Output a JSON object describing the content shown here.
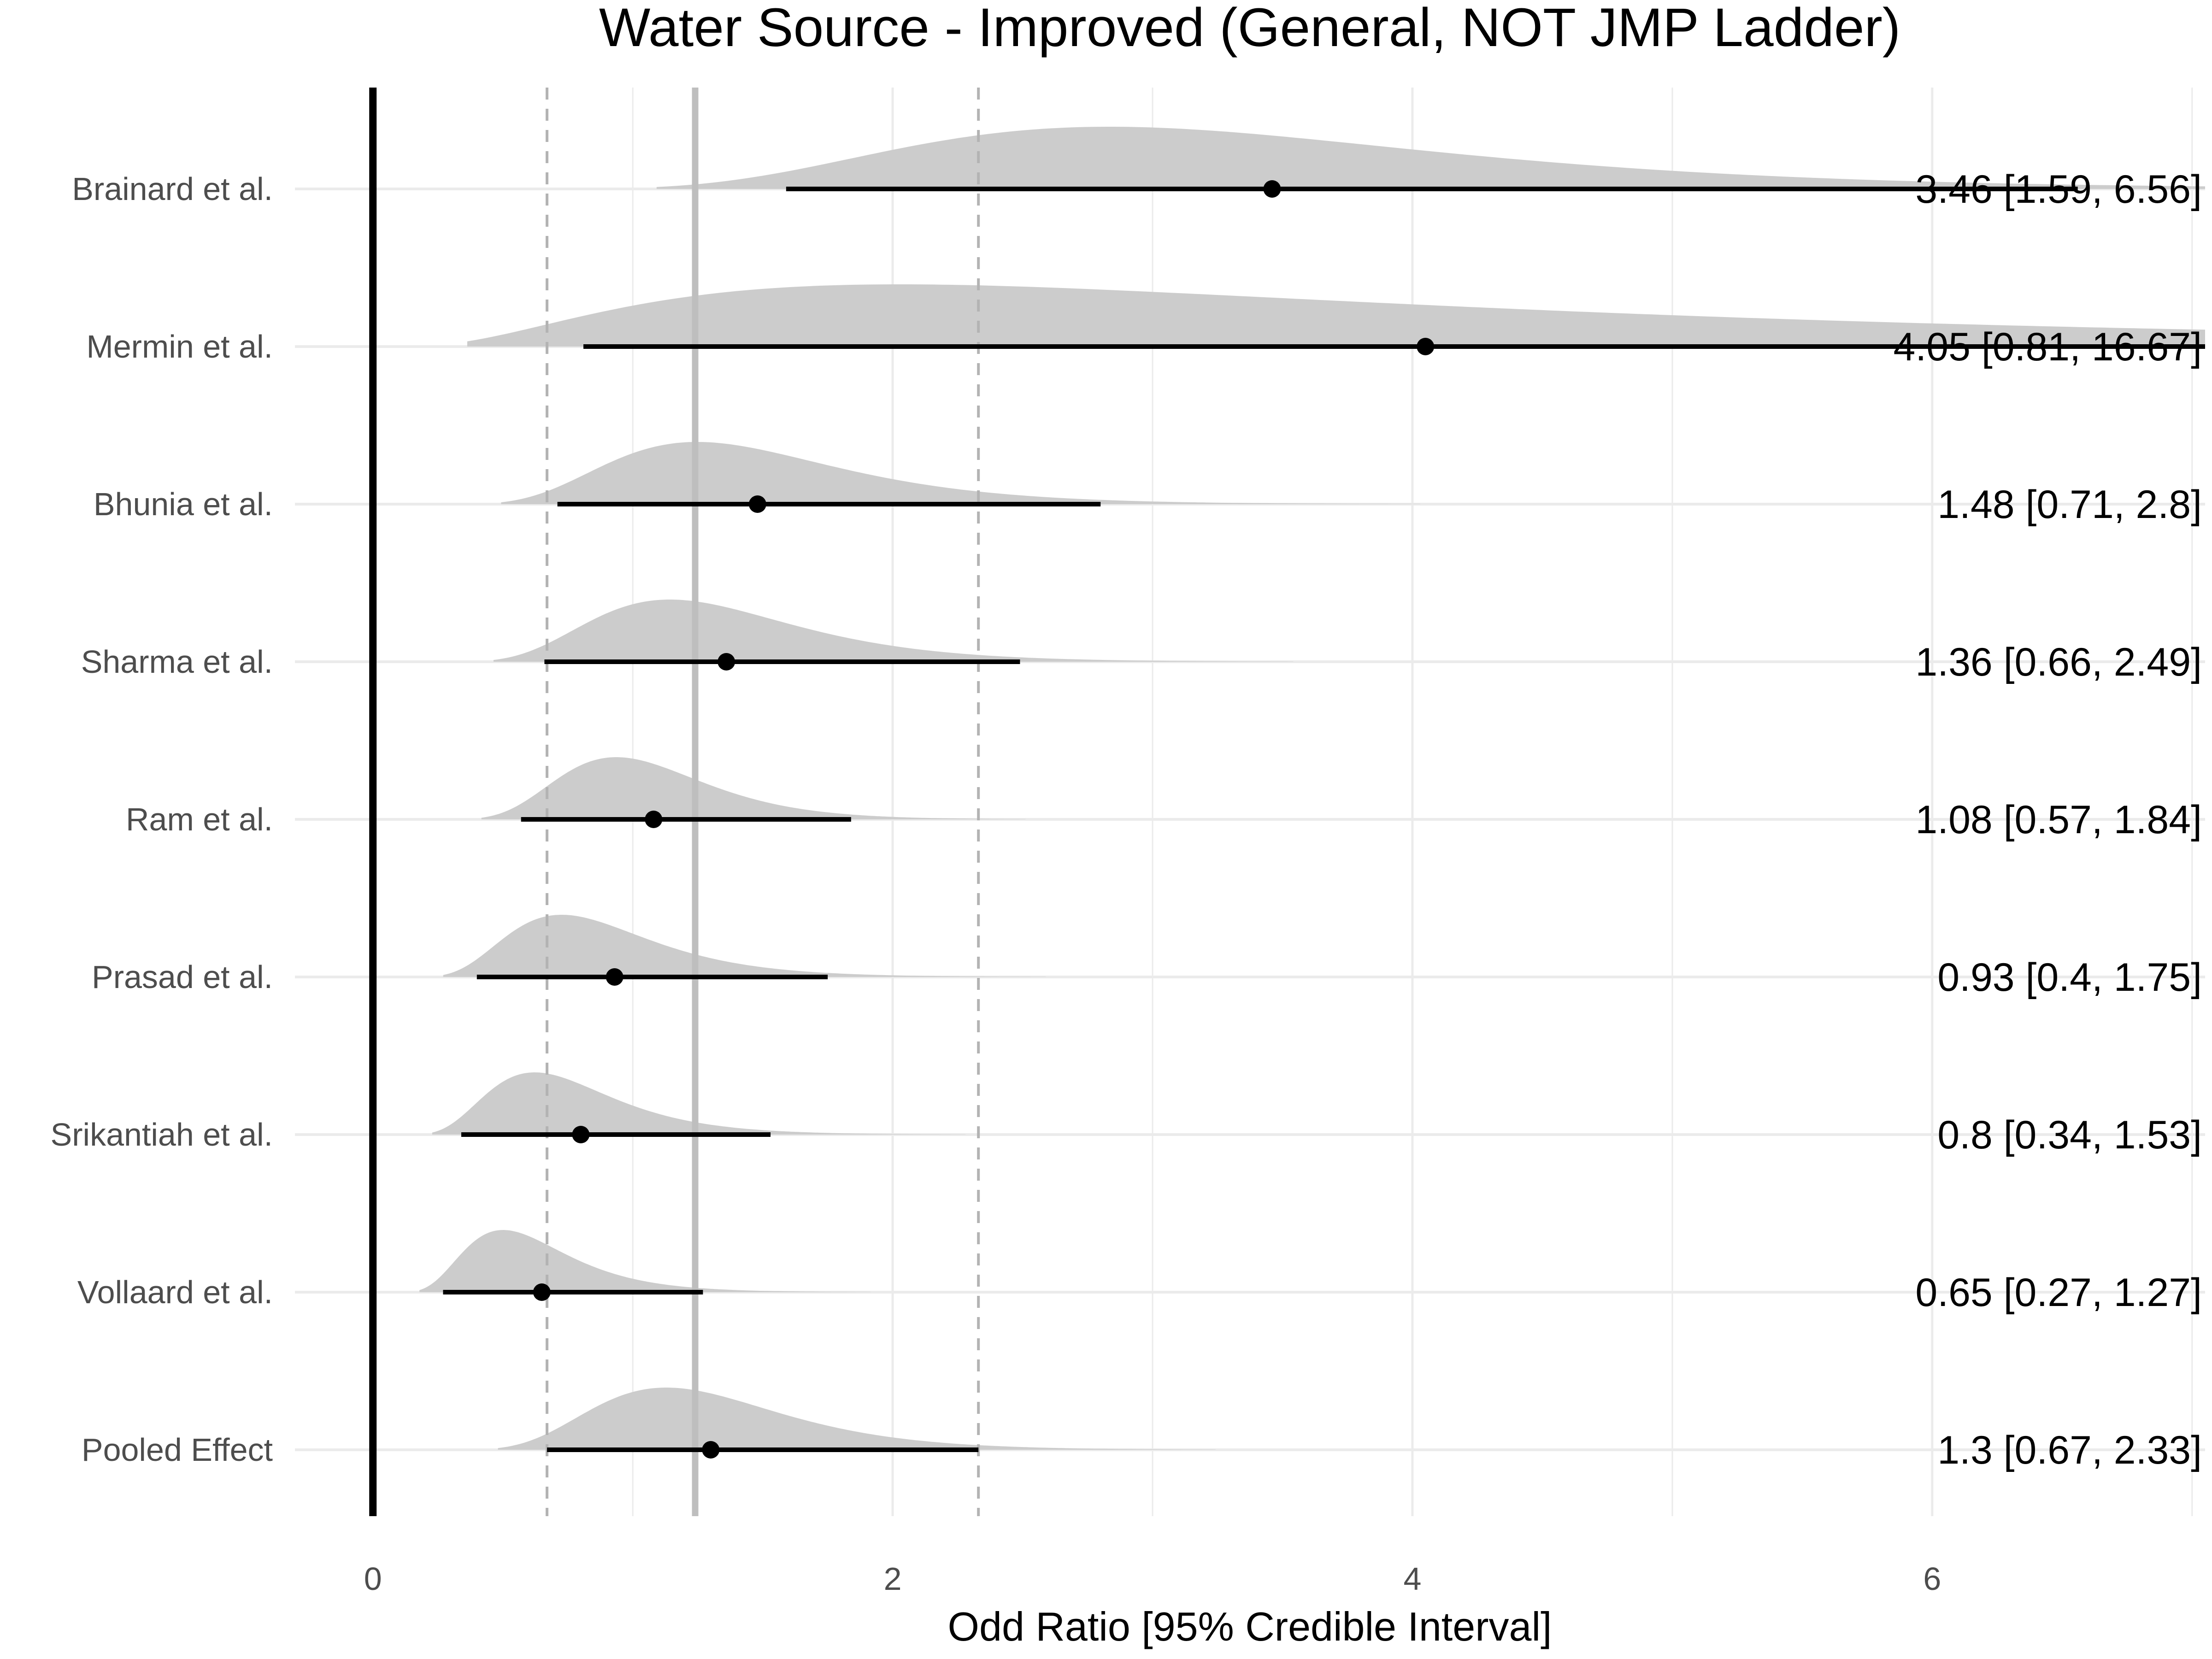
{
  "chart_data": {
    "type": "forest-density",
    "title": "Water Source - Improved (General, NOT JMP Ladder)",
    "xlabel": "Odd Ratio [95% Credible Interval]",
    "ylabel": "",
    "xlim": [
      -0.3,
      7.05
    ],
    "x_ticks": [
      0,
      2,
      4,
      6
    ],
    "x_tick_labels": [
      "0",
      "2",
      "4",
      "6"
    ],
    "grid": true,
    "legend": "none",
    "pooled_line": 1.24,
    "pooled_ci_lines": [
      0.67,
      2.33
    ],
    "null_line": 0,
    "colors": {
      "density": "#cccccc",
      "grid": "#ebebeb",
      "pooled_line": "#bebebe",
      "dashed": "#b3b3b3",
      "marks": "#000000"
    },
    "studies": [
      {
        "label": "Brainard et al.",
        "mean": 3.46,
        "lower": 1.59,
        "upper": 6.56,
        "annotation": "3.46 [1.59, 6.56]"
      },
      {
        "label": "Mermin et al.",
        "mean": 4.05,
        "lower": 0.81,
        "upper": 16.67,
        "annotation": "4.05 [0.81, 16.67]"
      },
      {
        "label": "Bhunia et al.",
        "mean": 1.48,
        "lower": 0.71,
        "upper": 2.8,
        "annotation": "1.48 [0.71, 2.8]"
      },
      {
        "label": "Sharma et al.",
        "mean": 1.36,
        "lower": 0.66,
        "upper": 2.49,
        "annotation": "1.36 [0.66, 2.49]"
      },
      {
        "label": "Ram et al.",
        "mean": 1.08,
        "lower": 0.57,
        "upper": 1.84,
        "annotation": "1.08 [0.57, 1.84]"
      },
      {
        "label": "Prasad et al.",
        "mean": 0.93,
        "lower": 0.4,
        "upper": 1.75,
        "annotation": "0.93 [0.4, 1.75]"
      },
      {
        "label": "Srikantiah et al.",
        "mean": 0.8,
        "lower": 0.34,
        "upper": 1.53,
        "annotation": "0.8 [0.34, 1.53]"
      },
      {
        "label": "Vollaard et al.",
        "mean": 0.65,
        "lower": 0.27,
        "upper": 1.27,
        "annotation": "0.65 [0.27, 1.27]"
      },
      {
        "label": "Pooled Effect",
        "mean": 1.3,
        "lower": 0.67,
        "upper": 2.33,
        "annotation": "1.3 [0.67, 2.33]"
      }
    ]
  }
}
